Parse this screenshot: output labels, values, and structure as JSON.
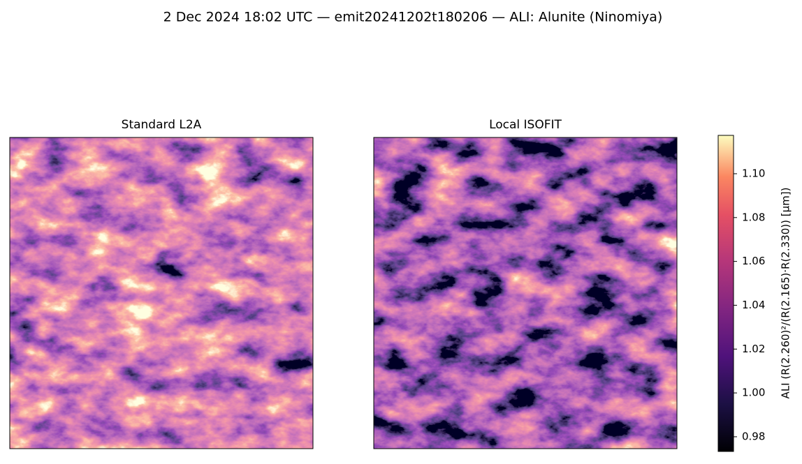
{
  "chart_data": {
    "type": "image",
    "title": "2 Dec 2024 18:02 UTC — emit20241202t180206 — ALI: Alunite (Ninomiya)",
    "panels": [
      {
        "title": "Standard L2A"
      },
      {
        "title": "Local ISOFIT"
      }
    ],
    "colorbar": {
      "label": "ALI  (R(2.260)²/(R(2.165)·R(2.330))  [µm])",
      "ylim": [
        0.9733,
        1.1175
      ],
      "yticks": [
        0.98,
        {
          "value": 1.0,
          "label": "1.00"
        },
        1.02,
        1.04,
        1.06,
        1.08,
        {
          "value": 1.1,
          "label": "1.10"
        }
      ]
    }
  }
}
